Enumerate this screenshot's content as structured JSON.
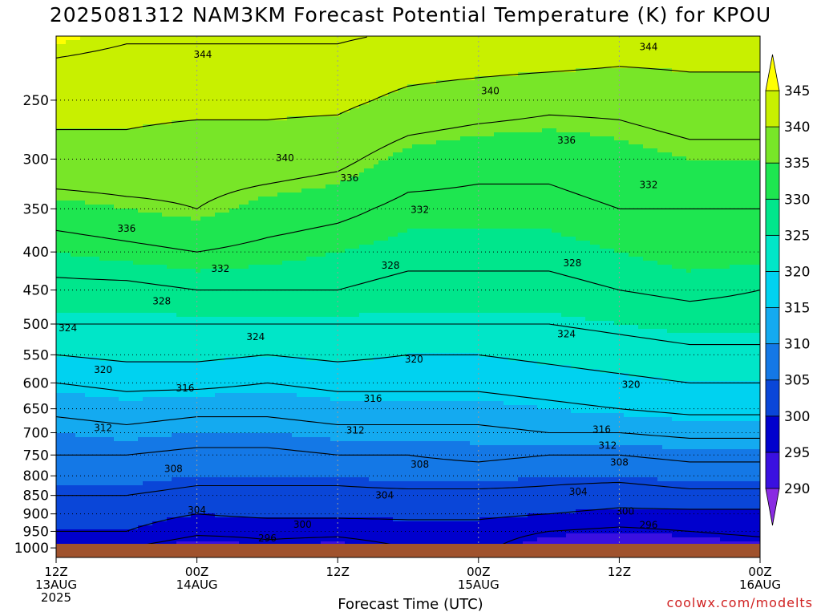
{
  "title": "2025081312 NAM3KM Forecast Potential Temperature (K) for KPOU",
  "credit": "coolwx.com/modelts",
  "chart_data": {
    "type": "heatmap",
    "variable": "Forecast Potential Temperature (K)",
    "xlabel": "Forecast Time (UTC)",
    "ylabel": "",
    "x_range_hours": [
      0,
      60
    ],
    "x_ticks": [
      {
        "hour": 0,
        "lines": [
          "12Z",
          "13AUG",
          "2025"
        ]
      },
      {
        "hour": 12,
        "lines": [
          "00Z",
          "14AUG"
        ]
      },
      {
        "hour": 24,
        "lines": [
          "12Z"
        ]
      },
      {
        "hour": 36,
        "lines": [
          "00Z",
          "15AUG"
        ]
      },
      {
        "hour": 48,
        "lines": [
          "12Z"
        ]
      },
      {
        "hour": 60,
        "lines": [
          "00Z",
          "16AUG"
        ]
      }
    ],
    "y_scale": "log-pressure (hPa, inverted)",
    "y_range_hpa": [
      1030,
      205
    ],
    "y_ticks": [
      250,
      300,
      350,
      400,
      450,
      500,
      550,
      600,
      650,
      700,
      750,
      800,
      850,
      900,
      950,
      1000
    ],
    "grid": true,
    "colorbar": {
      "levels": [
        290,
        295,
        300,
        305,
        310,
        315,
        320,
        325,
        330,
        335,
        340,
        345
      ],
      "colors": [
        "#8a2be2",
        "#3a10e0",
        "#0000cd",
        "#0a46d8",
        "#1478e6",
        "#14aaf0",
        "#00d2f0",
        "#00e6c8",
        "#00e68c",
        "#1ee650",
        "#78e628",
        "#c8f000",
        "#ffff00"
      ]
    },
    "contour_interval": 4,
    "profiles": [
      {
        "hour": 0,
        "levels": [
          [
            1000,
            296
          ],
          [
            950,
            300
          ],
          [
            900,
            302
          ],
          [
            850,
            304
          ],
          [
            800,
            306
          ],
          [
            750,
            308
          ],
          [
            700,
            310
          ],
          [
            650,
            313
          ],
          [
            600,
            316
          ],
          [
            550,
            320
          ],
          [
            500,
            324
          ],
          [
            450,
            327
          ],
          [
            400,
            330
          ],
          [
            350,
            334
          ],
          [
            300,
            339
          ],
          [
            250,
            341
          ],
          [
            210,
            345
          ]
        ]
      },
      {
        "hour": 6,
        "levels": [
          [
            1000,
            296
          ],
          [
            950,
            300
          ],
          [
            900,
            302
          ],
          [
            850,
            304
          ],
          [
            800,
            306
          ],
          [
            750,
            308
          ],
          [
            700,
            311
          ],
          [
            650,
            314
          ],
          [
            600,
            317
          ],
          [
            550,
            321
          ],
          [
            500,
            324
          ],
          [
            450,
            327
          ],
          [
            400,
            331
          ],
          [
            350,
            335
          ],
          [
            300,
            339
          ],
          [
            250,
            341
          ],
          [
            210,
            344
          ]
        ]
      },
      {
        "hour": 12,
        "levels": [
          [
            1000,
            293
          ],
          [
            950,
            297
          ],
          [
            900,
            300
          ],
          [
            850,
            303
          ],
          [
            800,
            305
          ],
          [
            750,
            307
          ],
          [
            700,
            310
          ],
          [
            650,
            313
          ],
          [
            600,
            317
          ],
          [
            550,
            321
          ],
          [
            500,
            324
          ],
          [
            450,
            328
          ],
          [
            400,
            332
          ],
          [
            350,
            336
          ],
          [
            300,
            338
          ],
          [
            250,
            341
          ],
          [
            210,
            344
          ]
        ]
      },
      {
        "hour": 18,
        "levels": [
          [
            1000,
            295
          ],
          [
            950,
            297
          ],
          [
            900,
            301
          ],
          [
            850,
            303
          ],
          [
            800,
            305
          ],
          [
            750,
            307
          ],
          [
            700,
            310
          ],
          [
            650,
            313
          ],
          [
            600,
            316
          ],
          [
            550,
            320
          ],
          [
            500,
            324
          ],
          [
            450,
            328
          ],
          [
            400,
            331
          ],
          [
            350,
            334
          ],
          [
            300,
            338
          ],
          [
            250,
            341
          ],
          [
            210,
            344
          ]
        ]
      },
      {
        "hour": 24,
        "levels": [
          [
            1000,
            294
          ],
          [
            950,
            297
          ],
          [
            900,
            301
          ],
          [
            850,
            303
          ],
          [
            800,
            305
          ],
          [
            750,
            308
          ],
          [
            700,
            311
          ],
          [
            650,
            314
          ],
          [
            600,
            317
          ],
          [
            550,
            321
          ],
          [
            500,
            324
          ],
          [
            450,
            328
          ],
          [
            400,
            330
          ],
          [
            350,
            333
          ],
          [
            300,
            337
          ],
          [
            250,
            341
          ],
          [
            210,
            344
          ]
        ]
      },
      {
        "hour": 30,
        "levels": [
          [
            1000,
            296
          ],
          [
            950,
            298
          ],
          [
            900,
            301
          ],
          [
            850,
            303
          ],
          [
            800,
            306
          ],
          [
            750,
            308
          ],
          [
            700,
            311
          ],
          [
            650,
            314
          ],
          [
            600,
            317
          ],
          [
            550,
            320
          ],
          [
            500,
            324
          ],
          [
            450,
            327
          ],
          [
            400,
            329
          ],
          [
            350,
            331
          ],
          [
            300,
            334
          ],
          [
            250,
            339
          ],
          [
            210,
            343
          ]
        ]
      },
      {
        "hour": 36,
        "levels": [
          [
            1000,
            297
          ],
          [
            950,
            298
          ],
          [
            900,
            301
          ],
          [
            850,
            303
          ],
          [
            800,
            306
          ],
          [
            750,
            309
          ],
          [
            700,
            311
          ],
          [
            650,
            314
          ],
          [
            600,
            317
          ],
          [
            550,
            320
          ],
          [
            500,
            324
          ],
          [
            450,
            327
          ],
          [
            400,
            329
          ],
          [
            350,
            331
          ],
          [
            300,
            333
          ],
          [
            250,
            338
          ],
          [
            210,
            343
          ]
        ]
      },
      {
        "hour": 42,
        "levels": [
          [
            1000,
            293
          ],
          [
            950,
            296
          ],
          [
            900,
            300
          ],
          [
            850,
            303
          ],
          [
            800,
            305
          ],
          [
            750,
            308
          ],
          [
            700,
            312
          ],
          [
            650,
            315
          ],
          [
            600,
            318
          ],
          [
            550,
            321
          ],
          [
            500,
            324
          ],
          [
            450,
            327
          ],
          [
            400,
            329
          ],
          [
            350,
            331
          ],
          [
            300,
            333
          ],
          [
            250,
            337
          ],
          [
            210,
            343
          ]
        ]
      },
      {
        "hour": 48,
        "levels": [
          [
            1000,
            292
          ],
          [
            950,
            295
          ],
          [
            900,
            299
          ],
          [
            850,
            302
          ],
          [
            800,
            305
          ],
          [
            750,
            308
          ],
          [
            700,
            312
          ],
          [
            650,
            316
          ],
          [
            600,
            319
          ],
          [
            550,
            322
          ],
          [
            500,
            325
          ],
          [
            450,
            328
          ],
          [
            400,
            330
          ],
          [
            350,
            332
          ],
          [
            300,
            334
          ],
          [
            250,
            337
          ],
          [
            210,
            342
          ]
        ]
      },
      {
        "hour": 54,
        "levels": [
          [
            1000,
            293
          ],
          [
            950,
            296
          ],
          [
            900,
            299
          ],
          [
            850,
            303
          ],
          [
            800,
            306
          ],
          [
            750,
            309
          ],
          [
            700,
            313
          ],
          [
            650,
            317
          ],
          [
            600,
            320
          ],
          [
            550,
            323
          ],
          [
            500,
            326
          ],
          [
            450,
            329
          ],
          [
            400,
            331
          ],
          [
            350,
            332
          ],
          [
            300,
            335
          ],
          [
            250,
            338
          ],
          [
            210,
            342
          ]
        ]
      },
      {
        "hour": 60,
        "levels": [
          [
            1000,
            294
          ],
          [
            950,
            297
          ],
          [
            900,
            299
          ],
          [
            850,
            303
          ],
          [
            800,
            306
          ],
          [
            750,
            309
          ],
          [
            700,
            313
          ],
          [
            650,
            317
          ],
          [
            600,
            320
          ],
          [
            550,
            323
          ],
          [
            500,
            326
          ],
          [
            450,
            328
          ],
          [
            400,
            331
          ],
          [
            350,
            332
          ],
          [
            300,
            335
          ],
          [
            250,
            338
          ],
          [
            210,
            342
          ]
        ]
      }
    ],
    "contour_labels": [
      {
        "value": "344",
        "hour": 12.5,
        "hpa": 217
      },
      {
        "value": "344",
        "hour": 50.5,
        "hpa": 212
      },
      {
        "value": "340",
        "hour": 37,
        "hpa": 243
      },
      {
        "value": "336",
        "hour": 43.5,
        "hpa": 283
      },
      {
        "value": "340",
        "hour": 19.5,
        "hpa": 299
      },
      {
        "value": "336",
        "hour": 25,
        "hpa": 318
      },
      {
        "value": "332",
        "hour": 50.5,
        "hpa": 325
      },
      {
        "value": "332",
        "hour": 31,
        "hpa": 351
      },
      {
        "value": "336",
        "hour": 6,
        "hpa": 372
      },
      {
        "value": "332",
        "hour": 14,
        "hpa": 421
      },
      {
        "value": "328",
        "hour": 28.5,
        "hpa": 417
      },
      {
        "value": "328",
        "hour": 44,
        "hpa": 414
      },
      {
        "value": "328",
        "hour": 9,
        "hpa": 466
      },
      {
        "value": "324",
        "hour": 1,
        "hpa": 506
      },
      {
        "value": "324",
        "hour": 17,
        "hpa": 520
      },
      {
        "value": "324",
        "hour": 43.5,
        "hpa": 516
      },
      {
        "value": "320",
        "hour": 30.5,
        "hpa": 558
      },
      {
        "value": "320",
        "hour": 4,
        "hpa": 576
      },
      {
        "value": "316",
        "hour": 11,
        "hpa": 610
      },
      {
        "value": "316",
        "hour": 27,
        "hpa": 630
      },
      {
        "value": "320",
        "hour": 49,
        "hpa": 603
      },
      {
        "value": "312",
        "hour": 4,
        "hpa": 690
      },
      {
        "value": "312",
        "hour": 25.5,
        "hpa": 695
      },
      {
        "value": "316",
        "hour": 46.5,
        "hpa": 693
      },
      {
        "value": "312",
        "hour": 47,
        "hpa": 728
      },
      {
        "value": "308",
        "hour": 10,
        "hpa": 783
      },
      {
        "value": "308",
        "hour": 31,
        "hpa": 772
      },
      {
        "value": "308",
        "hour": 48,
        "hpa": 767
      },
      {
        "value": "304",
        "hour": 28,
        "hpa": 850
      },
      {
        "value": "304",
        "hour": 44.5,
        "hpa": 840
      },
      {
        "value": "304",
        "hour": 12,
        "hpa": 890
      },
      {
        "value": "300",
        "hour": 48.5,
        "hpa": 893
      },
      {
        "value": "300",
        "hour": 21,
        "hpa": 930
      },
      {
        "value": "296",
        "hour": 50.5,
        "hpa": 932
      },
      {
        "value": "296",
        "hour": 18,
        "hpa": 970
      }
    ]
  }
}
